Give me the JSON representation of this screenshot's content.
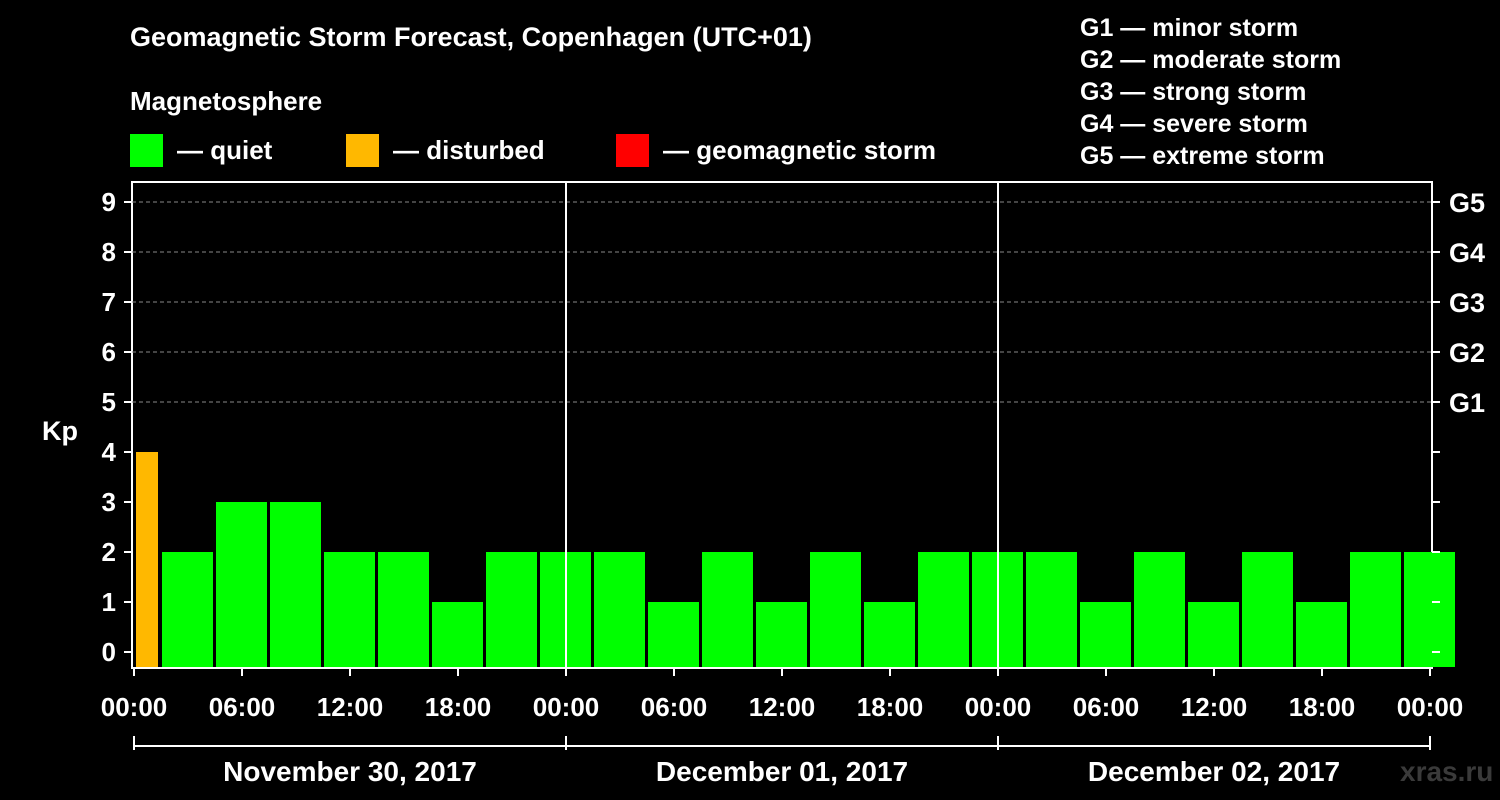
{
  "title": "Geomagnetic Storm Forecast, Copenhagen (UTC+01)",
  "legend": {
    "heading": "Magnetosphere",
    "items": [
      {
        "label": "— quiet",
        "color": "#00ff00"
      },
      {
        "label": "— disturbed",
        "color": "#ffb800"
      },
      {
        "label": "— geomagnetic storm",
        "color": "#ff0000"
      }
    ]
  },
  "g_scale": [
    "G1 — minor storm",
    "G2 — moderate storm",
    "G3 — strong storm",
    "G4 — severe storm",
    "G5 — extreme storm"
  ],
  "watermark": "xras.ru",
  "chart_data": {
    "type": "bar",
    "ylabel": "Kp",
    "ylim": [
      0,
      9
    ],
    "yticks": [
      "0",
      "1",
      "2",
      "3",
      "4",
      "5",
      "6",
      "7",
      "8",
      "9"
    ],
    "right_axis_labels": [
      {
        "kp": 5,
        "label": "G1"
      },
      {
        "kp": 6,
        "label": "G2"
      },
      {
        "kp": 7,
        "label": "G3"
      },
      {
        "kp": 8,
        "label": "G4"
      },
      {
        "kp": 9,
        "label": "G5"
      }
    ],
    "xtick_labels": [
      "00:00",
      "06:00",
      "12:00",
      "18:00",
      "00:00",
      "06:00",
      "12:00",
      "18:00",
      "00:00",
      "06:00",
      "12:00",
      "18:00",
      "00:00"
    ],
    "days": [
      "November 30, 2017",
      "December 01, 2017",
      "December 02, 2017"
    ],
    "colors": {
      "quiet": "#00ff00",
      "disturbed": "#ffb800",
      "storm": "#ff0000"
    },
    "grid": "dashed horizontal at Kp 5–9",
    "values": [
      4,
      2,
      3,
      3,
      2,
      2,
      1,
      2,
      2,
      2,
      1,
      2,
      1,
      2,
      1,
      2,
      2,
      2,
      1,
      2,
      1,
      2,
      1,
      2,
      2
    ]
  }
}
